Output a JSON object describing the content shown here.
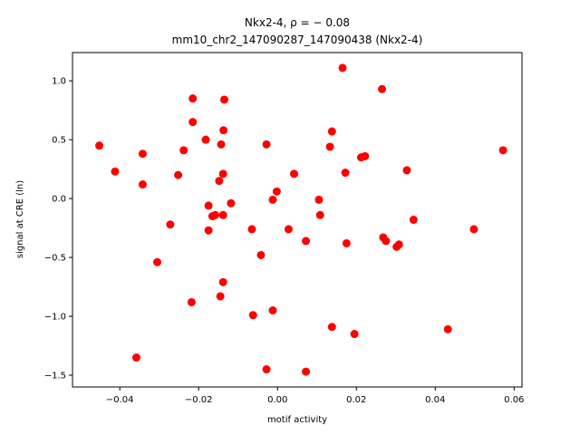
{
  "chart_data": {
    "type": "scatter",
    "title_line1": "Nkx2-4, ρ = − 0.08",
    "title_line2": "mm10_chr2_147090287_147090438 (Nkx2-4)",
    "xlabel": "motif activity",
    "ylabel": "signal at CRE (ln)",
    "xlim": [
      -0.052,
      0.062
    ],
    "ylim": [
      -1.6,
      1.24
    ],
    "xticks": [
      -0.04,
      -0.02,
      0.0,
      0.02,
      0.04,
      0.06
    ],
    "xtick_labels": [
      "−0.04",
      "−0.02",
      "0.00",
      "0.02",
      "0.04",
      "0.06"
    ],
    "yticks": [
      -1.5,
      -1.0,
      -0.5,
      0.0,
      0.5,
      1.0
    ],
    "ytick_labels": [
      "−1.5",
      "−1.0",
      "−0.5",
      "0.0",
      "0.5",
      "1.0"
    ],
    "marker_color": "#ff0000",
    "points": [
      {
        "x": 0.0165,
        "y": 1.11
      },
      {
        "x": 0.0265,
        "y": 0.93
      },
      {
        "x": -0.0215,
        "y": 0.85
      },
      {
        "x": -0.0135,
        "y": 0.84
      },
      {
        "x": -0.0215,
        "y": 0.65
      },
      {
        "x": -0.0137,
        "y": 0.58
      },
      {
        "x": 0.0138,
        "y": 0.57
      },
      {
        "x": -0.0182,
        "y": 0.5
      },
      {
        "x": -0.0452,
        "y": 0.45
      },
      {
        "x": -0.0143,
        "y": 0.46
      },
      {
        "x": -0.0028,
        "y": 0.46
      },
      {
        "x": 0.0133,
        "y": 0.44
      },
      {
        "x": -0.0238,
        "y": 0.41
      },
      {
        "x": 0.0572,
        "y": 0.41
      },
      {
        "x": -0.0342,
        "y": 0.38
      },
      {
        "x": 0.0222,
        "y": 0.36
      },
      {
        "x": 0.0212,
        "y": 0.35
      },
      {
        "x": -0.0412,
        "y": 0.23
      },
      {
        "x": 0.0328,
        "y": 0.24
      },
      {
        "x": 0.0172,
        "y": 0.22
      },
      {
        "x": -0.0138,
        "y": 0.21
      },
      {
        "x": 0.0042,
        "y": 0.21
      },
      {
        "x": -0.0252,
        "y": 0.2
      },
      {
        "x": -0.0148,
        "y": 0.15
      },
      {
        "x": -0.0342,
        "y": 0.12
      },
      {
        "x": -0.0002,
        "y": 0.06
      },
      {
        "x": -0.0012,
        "y": -0.01
      },
      {
        "x": 0.0105,
        "y": -0.01
      },
      {
        "x": -0.0118,
        "y": -0.04
      },
      {
        "x": -0.0175,
        "y": -0.06
      },
      {
        "x": 0.0108,
        "y": -0.14
      },
      {
        "x": -0.0165,
        "y": -0.15
      },
      {
        "x": -0.0158,
        "y": -0.14
      },
      {
        "x": -0.0138,
        "y": -0.14
      },
      {
        "x": 0.0345,
        "y": -0.18
      },
      {
        "x": -0.0272,
        "y": -0.22
      },
      {
        "x": -0.0065,
        "y": -0.26
      },
      {
        "x": 0.0028,
        "y": -0.26
      },
      {
        "x": 0.0498,
        "y": -0.26
      },
      {
        "x": -0.0175,
        "y": -0.27
      },
      {
        "x": 0.0268,
        "y": -0.33
      },
      {
        "x": 0.0275,
        "y": -0.36
      },
      {
        "x": 0.0072,
        "y": -0.36
      },
      {
        "x": 0.0175,
        "y": -0.38
      },
      {
        "x": 0.0308,
        "y": -0.39
      },
      {
        "x": 0.0302,
        "y": -0.41
      },
      {
        "x": -0.0042,
        "y": -0.48
      },
      {
        "x": -0.0305,
        "y": -0.54
      },
      {
        "x": -0.0138,
        "y": -0.71
      },
      {
        "x": -0.0145,
        "y": -0.83
      },
      {
        "x": -0.0218,
        "y": -0.88
      },
      {
        "x": -0.0012,
        "y": -0.95
      },
      {
        "x": -0.0062,
        "y": -0.99
      },
      {
        "x": 0.0138,
        "y": -1.09
      },
      {
        "x": 0.0432,
        "y": -1.11
      },
      {
        "x": 0.0195,
        "y": -1.15
      },
      {
        "x": -0.0358,
        "y": -1.35
      },
      {
        "x": -0.0028,
        "y": -1.45
      },
      {
        "x": 0.0072,
        "y": -1.47
      }
    ]
  }
}
